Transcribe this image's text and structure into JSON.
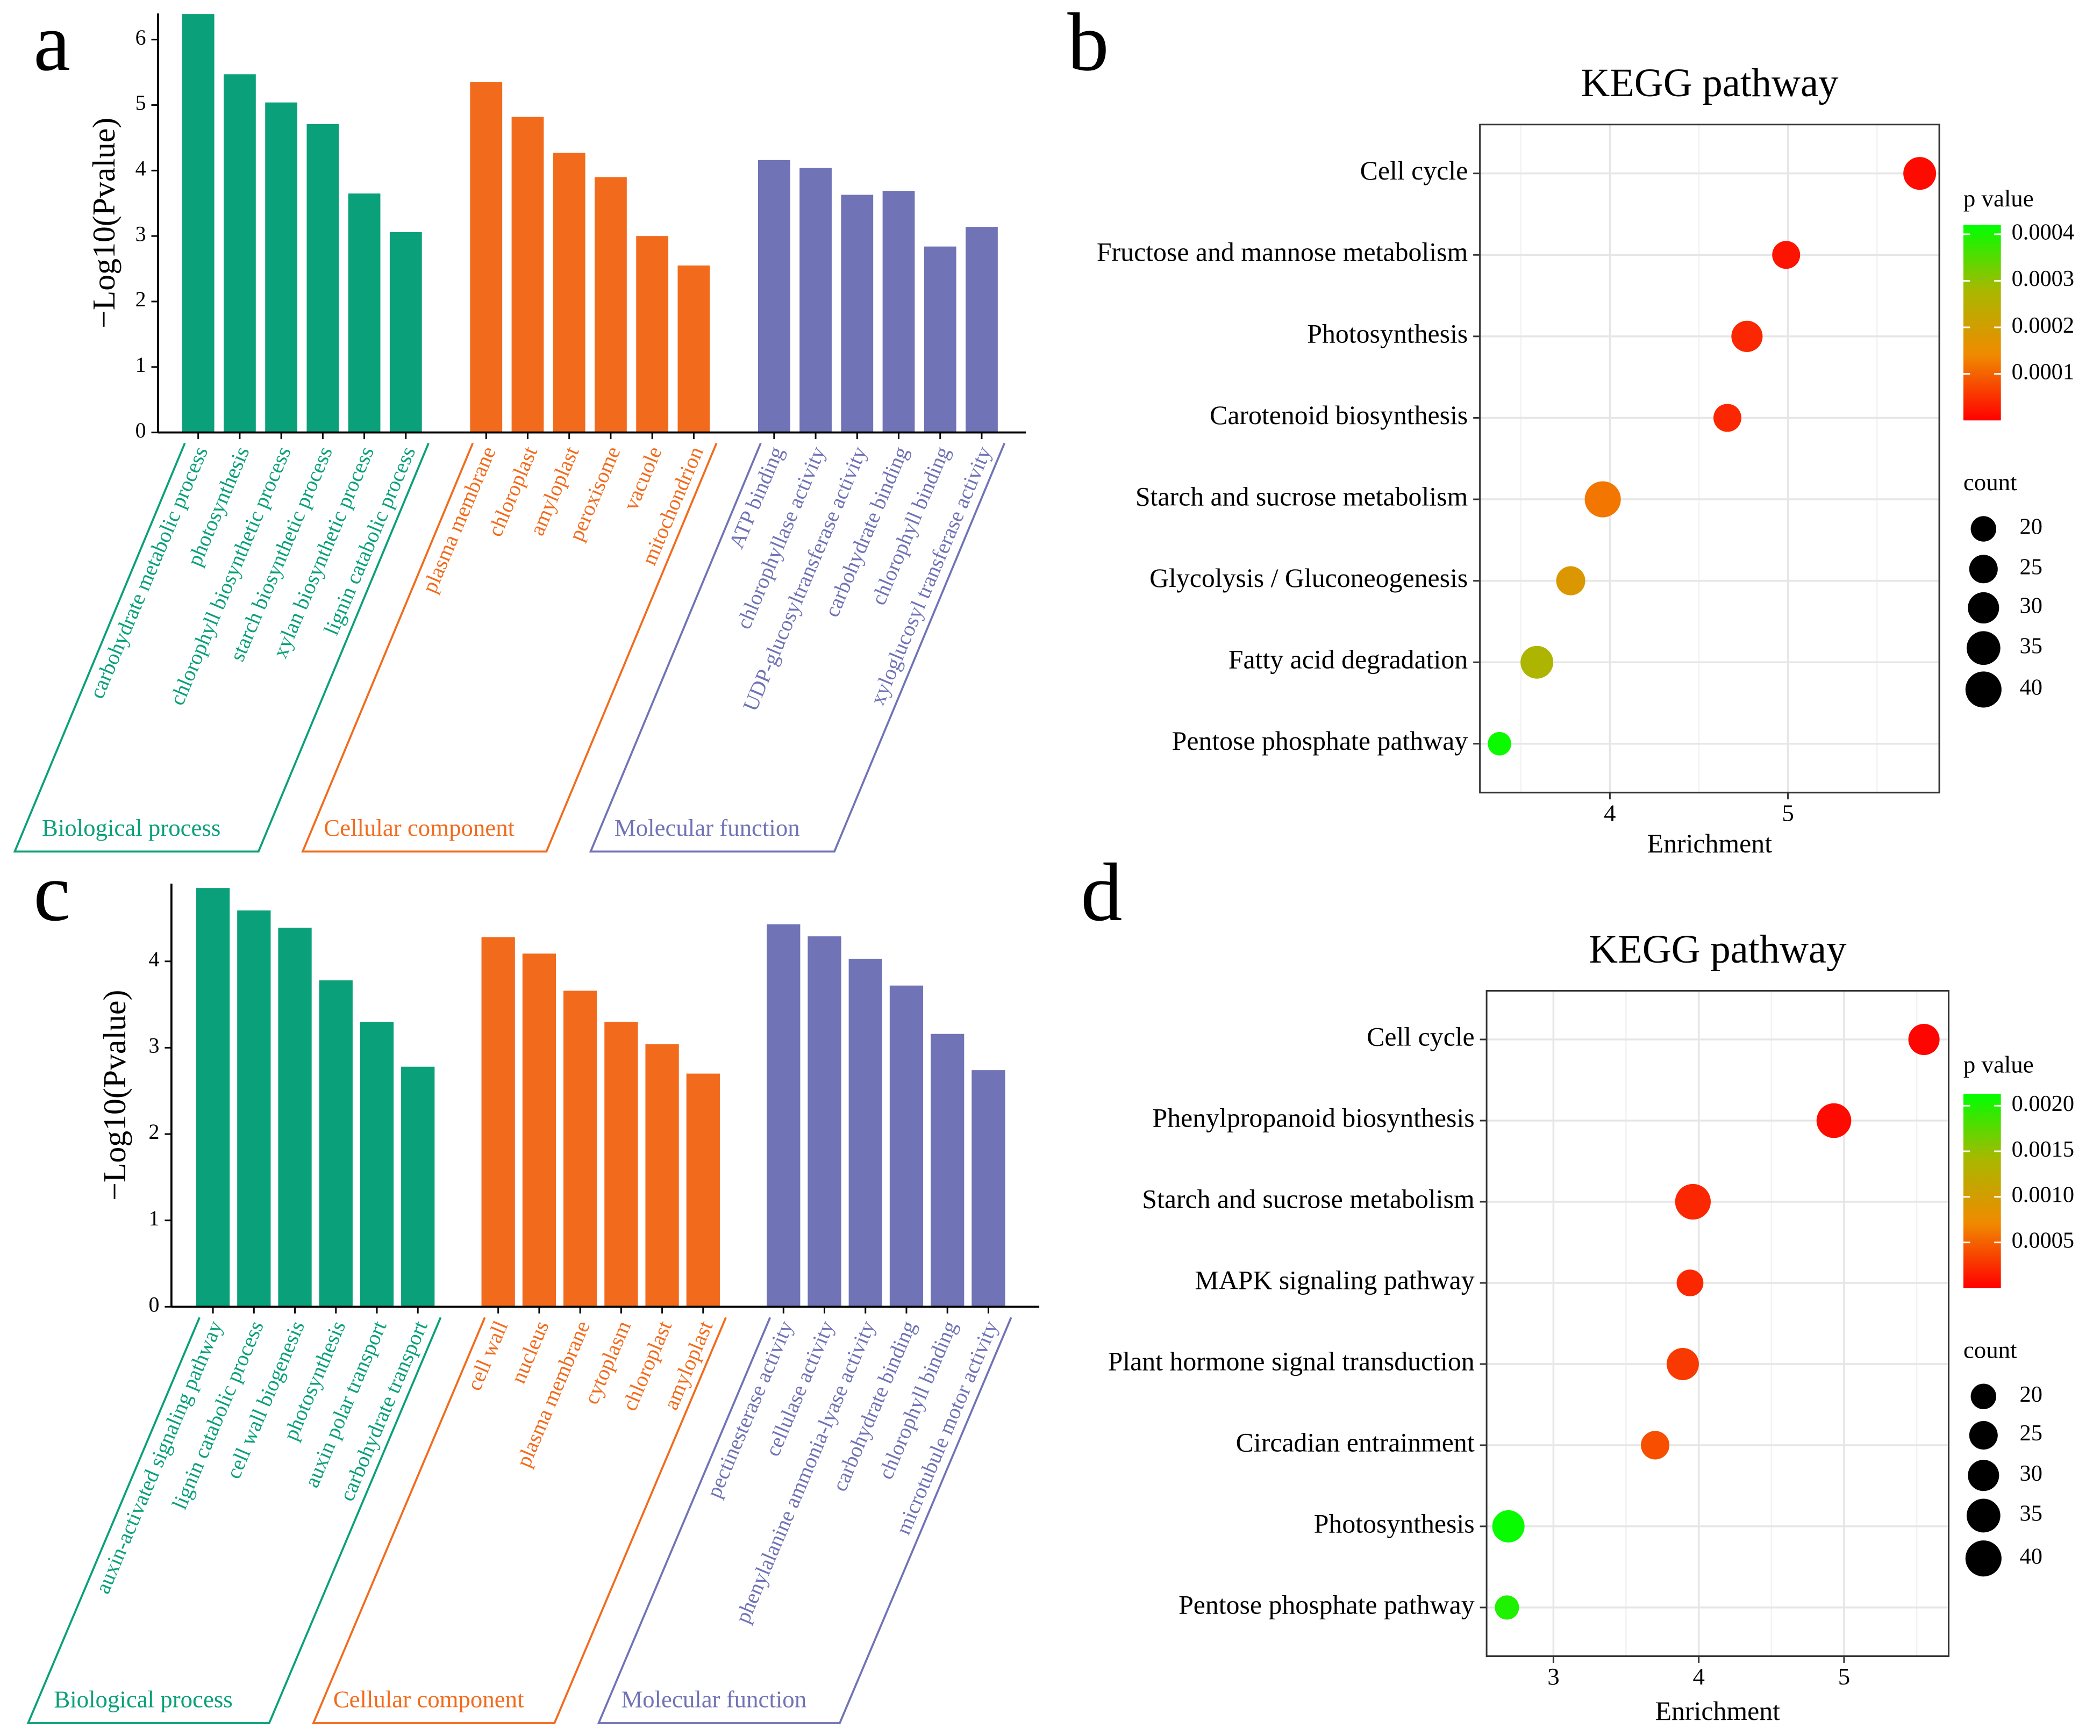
{
  "chart_data": [
    {
      "type": "bar",
      "panel_label": "a",
      "y_label": "−Log10(Pvalue)",
      "ylim": [
        0,
        6.4
      ],
      "yticks": [
        0,
        1,
        2,
        3,
        4,
        5,
        6
      ],
      "groups": [
        {
          "name": "Biological process",
          "color": "#0aa07a",
          "categories": [
            "carbohydrate metabolic process",
            "photosynthesis",
            "chlorophyll biosynthetic process",
            "starch biosynthetic process",
            "xylan biosynthetic process",
            "lignin catabolic process"
          ],
          "values": [
            6.39,
            5.47,
            5.04,
            4.71,
            3.65,
            3.06
          ]
        },
        {
          "name": "Cellular component",
          "color": "#f26b1d",
          "categories": [
            "plasma membrane",
            "chloroplast",
            "amyloplast",
            "peroxisome",
            "vacuole",
            "mitochondrion"
          ],
          "values": [
            5.35,
            4.82,
            4.27,
            3.9,
            3.0,
            2.55
          ]
        },
        {
          "name": "Molecular function",
          "color": "#7073b5",
          "categories": [
            "ATP binding",
            "chlorophyllase activity",
            "UDP-glucosyltransferase activity",
            "carbohydrate binding",
            "chlorophyll binding",
            "xyloglucosyl transferase activity"
          ],
          "values": [
            4.16,
            4.04,
            3.63,
            3.69,
            2.84,
            3.14
          ]
        }
      ]
    },
    {
      "type": "dot",
      "panel_label": "b",
      "title": "KEGG pathway",
      "x_label": "Enrichment",
      "categories": [
        "Cell cycle",
        "Fructose and mannose metabolism",
        "Photosynthesis",
        "Carotenoid biosynthesis",
        "Starch and sucrose metabolism",
        "Glycolysis / Gluconeogenesis",
        "Fatty acid degradation",
        "Pentose phosphate pathway"
      ],
      "values": [
        5.74,
        4.99,
        4.77,
        4.66,
        3.96,
        3.78,
        3.59,
        3.38
      ],
      "counts": [
        33,
        24,
        30,
        24,
        40,
        26,
        33,
        17
      ],
      "pvalues": [
        1e-05,
        2e-05,
        4e-05,
        4e-05,
        0.00012,
        0.00018,
        0.00027,
        0.00041
      ],
      "xlim": [
        3.27,
        5.85
      ],
      "xticks": [
        4,
        5
      ],
      "xminor": [
        3.5,
        4.5,
        5.5
      ],
      "grid": true,
      "color_title": "p value",
      "color_lim": [
        0,
        0.00042
      ],
      "color_ticks": [
        0.0001,
        0.0002,
        0.0003,
        0.0004
      ],
      "colors": [
        "#ff0000",
        "#f08a00",
        "#a8b800",
        "#00ff00"
      ],
      "size_title": "count",
      "size_ticks": [
        20,
        25,
        30,
        35,
        40
      ]
    },
    {
      "type": "bar",
      "panel_label": "c",
      "y_label": "−Log10(Pvalue)",
      "ylim": [
        0,
        4.9
      ],
      "yticks": [
        0,
        1,
        2,
        3,
        4
      ],
      "groups": [
        {
          "name": "Biological process",
          "color": "#0aa07a",
          "categories": [
            "auxin-activated signaling pathway",
            "lignin catabolic process",
            "cell wall biogenesis",
            "photosynthesis",
            "auxin polar transport",
            "carbohydrate transport"
          ],
          "values": [
            4.85,
            4.59,
            4.39,
            3.78,
            3.3,
            2.78
          ]
        },
        {
          "name": "Cellular component",
          "color": "#f26b1d",
          "categories": [
            "cell wall",
            "nucleus",
            "plasma membrane",
            "cytoplasm",
            "chloroplast",
            "amyloplast"
          ],
          "values": [
            4.28,
            4.09,
            3.66,
            3.3,
            3.04,
            2.7
          ]
        },
        {
          "name": "Molecular function",
          "color": "#7073b5",
          "categories": [
            "pectinesterase activity",
            "cellulase activity",
            "phenylalanine ammonia-lyase activity",
            "carbohydrate binding",
            "chlorophyll binding",
            "microtubule motor activity"
          ],
          "values": [
            4.43,
            4.29,
            4.03,
            3.72,
            3.16,
            2.74
          ]
        }
      ]
    },
    {
      "type": "dot",
      "panel_label": "d",
      "title": "KEGG pathway",
      "x_label": "Enrichment",
      "categories": [
        "Cell cycle",
        "Phenylpropanoid biosynthesis",
        "Starch and sucrose metabolism",
        "MAPK signaling pathway",
        "Plant hormone signal transduction",
        "Circadian entrainment",
        "Photosynthesis",
        "Pentose phosphate pathway"
      ],
      "values": [
        5.55,
        4.93,
        3.96,
        3.94,
        3.89,
        3.7,
        2.69,
        2.68
      ],
      "counts": [
        30,
        37,
        39,
        22,
        32,
        25,
        32,
        18
      ],
      "pvalues": [
        2e-05,
        5e-05,
        0.0002,
        0.0002,
        0.0003,
        0.0004,
        0.0021,
        0.002
      ],
      "xlim": [
        2.54,
        5.72
      ],
      "xticks": [
        3,
        4,
        5
      ],
      "xminor": [
        3.5,
        4.5,
        5.5
      ],
      "grid": true,
      "color_title": "p value",
      "color_lim": [
        0,
        0.00213
      ],
      "color_ticks": [
        0.0005,
        {
          "value": 0.001,
          "label": "0.0010"
        },
        0.0015,
        {
          "value": 0.002,
          "label": "0.0020"
        }
      ],
      "colors": [
        "#ff0000",
        "#f08a00",
        "#a8b800",
        "#00ff00"
      ],
      "size_title": "count",
      "size_ticks": [
        20,
        25,
        30,
        35,
        40
      ]
    }
  ]
}
